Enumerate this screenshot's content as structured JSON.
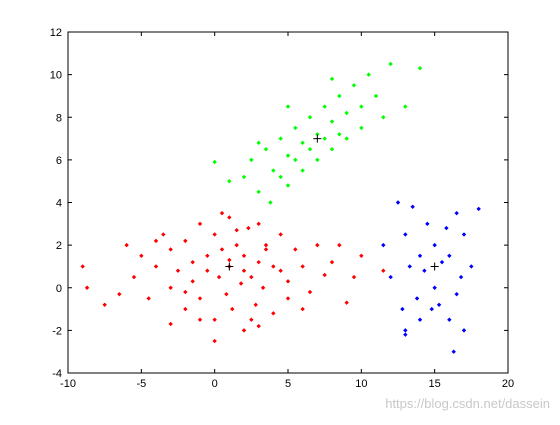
{
  "chart_data": {
    "type": "scatter",
    "xlim": [
      -10,
      20
    ],
    "ylim": [
      -4,
      12
    ],
    "xticks": [
      -10,
      -5,
      0,
      5,
      10,
      15,
      20
    ],
    "yticks": [
      -4,
      -2,
      0,
      2,
      4,
      6,
      8,
      10,
      12
    ],
    "series": [
      {
        "color": "#ff0000",
        "marker": "diamond",
        "x": [
          -9,
          -8.7,
          -7.5,
          -6,
          -5.5,
          -5,
          -4.5,
          -4,
          -3.5,
          -3,
          -3,
          -2.5,
          -2,
          -2,
          -1.5,
          -1.5,
          -1,
          -1,
          -0.5,
          -0.5,
          0,
          0,
          0.3,
          0.5,
          0.8,
          1,
          1,
          1.2,
          1.5,
          1.8,
          2,
          2,
          2.3,
          2.5,
          2.8,
          3,
          3,
          3.3,
          3.5,
          4,
          4,
          4.5,
          5,
          5,
          5.5,
          6,
          6.5,
          7,
          7.5,
          8,
          9,
          9.5,
          10,
          11.5,
          -3,
          -1,
          0,
          1.5,
          3,
          4.5,
          2,
          -2,
          0.5,
          6,
          8.5,
          -6.5,
          1,
          3.5,
          -4,
          2.5
        ],
        "values": [
          1,
          0,
          -0.8,
          2,
          0.5,
          1.5,
          -0.5,
          1,
          2.5,
          0,
          1.8,
          0.8,
          -1,
          2.2,
          1.2,
          0.3,
          3,
          -0.5,
          1.5,
          0.8,
          2.5,
          -1.5,
          0.5,
          1.8,
          -0.3,
          1,
          3.3,
          -1,
          2,
          0.2,
          1.5,
          -2,
          2.8,
          0.5,
          -0.8,
          1.2,
          3,
          0,
          2,
          -1.2,
          1,
          2.5,
          0.3,
          -0.5,
          1.8,
          1,
          -0.2,
          2,
          0.6,
          1.2,
          -0.7,
          0.5,
          1.5,
          0.8,
          -1.7,
          -1.5,
          -2.5,
          2.7,
          -1.8,
          0.8,
          0.8,
          -0.2,
          3.5,
          -1,
          2,
          -0.3,
          1.3,
          1.8,
          2.2,
          -1.5
        ]
      },
      {
        "color": "#00ff00",
        "marker": "diamond",
        "x": [
          0,
          1,
          2,
          2.5,
          3,
          3.5,
          3.8,
          4,
          4.5,
          4.5,
          5,
          5,
          5.5,
          5.5,
          6,
          6,
          6.5,
          6.5,
          7,
          7,
          7.5,
          7.5,
          8,
          8,
          8.5,
          8.5,
          9,
          9,
          9.5,
          10,
          10,
          10.5,
          11,
          11.5,
          12,
          13,
          14,
          5,
          8,
          3
        ],
        "values": [
          5.9,
          5,
          5.2,
          6,
          4.5,
          6.5,
          4,
          5.5,
          7,
          5.2,
          6.2,
          4.8,
          7.5,
          6,
          6.8,
          5.5,
          8,
          6.5,
          7.2,
          6,
          8.5,
          7,
          7.8,
          6.5,
          9,
          7.2,
          8.2,
          7,
          9.5,
          8.5,
          7.5,
          10,
          9,
          8,
          10.5,
          8.5,
          10.3,
          8.5,
          9.8,
          6.8
        ]
      },
      {
        "color": "#0000ff",
        "marker": "diamond",
        "x": [
          11.5,
          12,
          12.5,
          12.8,
          13,
          13,
          13.3,
          13.5,
          13.8,
          14,
          14,
          14.3,
          14.5,
          14.8,
          15,
          15,
          15.3,
          15.5,
          15.8,
          16,
          16,
          16.3,
          16.5,
          16.8,
          17,
          17,
          17.5,
          18,
          13,
          16.5
        ],
        "values": [
          2,
          0.5,
          4,
          -1,
          2.5,
          -2,
          1,
          3.8,
          -0.5,
          1.5,
          -1.5,
          0.8,
          3,
          -1,
          2,
          0,
          -0.8,
          1.2,
          2.8,
          -1.5,
          1.5,
          -3,
          3.5,
          0.5,
          -2,
          2.5,
          1,
          3.7,
          -2.2,
          -0.3
        ]
      },
      {
        "color": "#000000",
        "marker": "plus",
        "x": [
          1,
          7,
          15
        ],
        "values": [
          1,
          7,
          1
        ]
      }
    ],
    "watermark": "https://blog.csdn.net/dassein"
  }
}
